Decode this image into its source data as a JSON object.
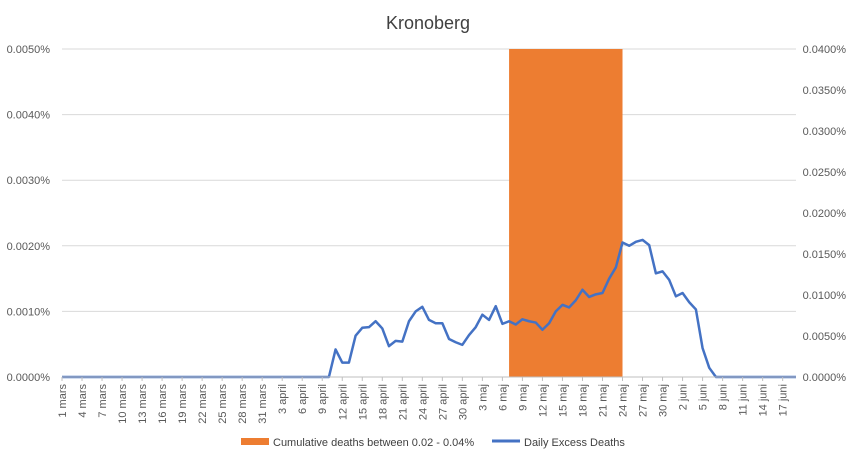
{
  "chart_data": {
    "type": "line",
    "title": "Kronoberg",
    "grid": true,
    "legend_position": "bottom",
    "colors": {
      "band": "#ED7D31",
      "line": "#4472C4",
      "grid": "#D9D9D9",
      "axis": "#BFBFBF"
    },
    "x_tick_labels": [
      "1 mars",
      "4 mars",
      "7 mars",
      "10 mars",
      "13 mars",
      "16 mars",
      "19 mars",
      "22 mars",
      "25 mars",
      "28 mars",
      "31 mars",
      "3 april",
      "6 april",
      "9 april",
      "12 april",
      "15 april",
      "18 april",
      "21 april",
      "24 april",
      "27 april",
      "30 april",
      "3 maj",
      "6 maj",
      "9 maj",
      "12 maj",
      "15 maj",
      "18 maj",
      "21 maj",
      "24 maj",
      "27 maj",
      "30 maj",
      "2 juni",
      "5 juni",
      "8 juni",
      "11 juni",
      "14 juni",
      "17 juni"
    ],
    "x_tick_step_days": 3,
    "x_range_days": [
      "1 mars",
      "19 juni"
    ],
    "y_left": {
      "ticks": [
        "0.0000%",
        "0.0010%",
        "0.0020%",
        "0.0030%",
        "0.0040%",
        "0.0050%"
      ],
      "ylim": [
        0,
        0.005
      ]
    },
    "y_right": {
      "ticks": [
        "0.0000%",
        "0.0050%",
        "0.0100%",
        "0.0150%",
        "0.0200%",
        "0.0250%",
        "0.0300%",
        "0.0350%",
        "0.0400%"
      ],
      "ylim": [
        0,
        0.04
      ]
    },
    "band": {
      "name": "Cumulative deaths between 0.02 - 0.04%",
      "start": "7 maj",
      "end": "24 maj",
      "axis": "left",
      "value": 0.005
    },
    "series": [
      {
        "name": "Daily Excess Deaths",
        "axis": "left",
        "start": "1 mars",
        "values": [
          0,
          0,
          0,
          0,
          0,
          0,
          0,
          0,
          0,
          0,
          0,
          0,
          0,
          0,
          0,
          0,
          0,
          0,
          0,
          0,
          0,
          0,
          0,
          0,
          0,
          0,
          0,
          0,
          0,
          0,
          0,
          0,
          0,
          0,
          0,
          0,
          0,
          0,
          0,
          0,
          0,
          0.00042,
          0.00022,
          0.00022,
          0.00063,
          0.00075,
          0.00076,
          0.00085,
          0.00074,
          0.00047,
          0.00055,
          0.00054,
          0.00085,
          0.001,
          0.00107,
          0.00087,
          0.00082,
          0.00082,
          0.00058,
          0.00053,
          0.00049,
          0.00064,
          0.00076,
          0.00095,
          0.00087,
          0.00108,
          0.00081,
          0.00085,
          0.0008,
          0.00088,
          0.00085,
          0.00083,
          0.00072,
          0.00082,
          0.001,
          0.0011,
          0.00106,
          0.00117,
          0.00133,
          0.00122,
          0.00126,
          0.00128,
          0.0015,
          0.00167,
          0.00205,
          0.002,
          0.00206,
          0.00209,
          0.00201,
          0.00158,
          0.00161,
          0.00148,
          0.00123,
          0.00128,
          0.00114,
          0.00103,
          0.00044,
          0.00014,
          0,
          0,
          0,
          0,
          0,
          0,
          0,
          0,
          0,
          0,
          0,
          0,
          0
        ]
      }
    ]
  }
}
